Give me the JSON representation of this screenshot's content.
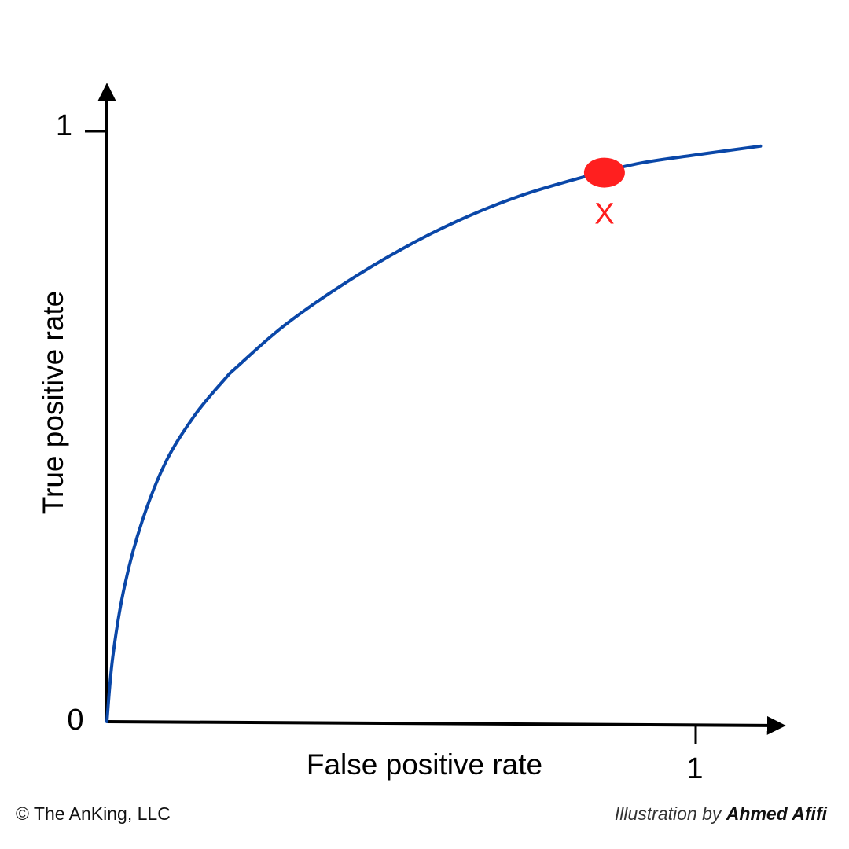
{
  "chart_data": {
    "type": "line",
    "title": "",
    "xlabel": "False positive rate",
    "ylabel": "True positive rate",
    "xlim": [
      0,
      1
    ],
    "ylim": [
      0,
      1
    ],
    "x_ticks": [
      {
        "value": 1,
        "label": "1"
      }
    ],
    "y_ticks": [
      {
        "value": 1,
        "label": "1"
      }
    ],
    "origin_label": "0",
    "grid": false,
    "series": [
      {
        "color": "#0a47a8",
        "x": [
          0,
          0.01,
          0.03,
          0.06,
          0.1,
          0.15,
          0.2,
          0.22,
          0.3,
          0.4,
          0.5,
          0.6,
          0.7,
          0.8,
          0.9,
          1.0,
          1.11
        ],
        "y": [
          0,
          0.11,
          0.23,
          0.34,
          0.44,
          0.52,
          0.58,
          0.6,
          0.67,
          0.74,
          0.8,
          0.85,
          0.89,
          0.92,
          0.945,
          0.96,
          0.975
        ]
      }
    ],
    "annotations": [
      {
        "x": 0.845,
        "y": 0.93,
        "marker": "filled-circle",
        "color": "#ff1f1f",
        "label": "X"
      }
    ]
  },
  "footer": {
    "copyright": "© The AnKing, LLC",
    "credit_prefix": "Illustration by ",
    "credit_author": "Ahmed Afifi"
  }
}
